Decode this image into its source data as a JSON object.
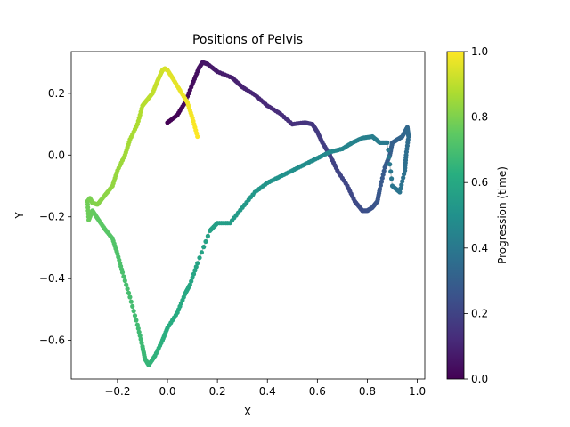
{
  "chart_data": {
    "type": "scatter",
    "title": "Positions of Pelvis",
    "xlabel": "X",
    "ylabel": "Y",
    "xlim": [
      -0.385,
      1.03
    ],
    "ylim": [
      -0.725,
      0.335
    ],
    "xticks": [
      -0.2,
      0.0,
      0.2,
      0.4,
      0.6,
      0.8,
      1.0
    ],
    "xtick_labels": [
      "−0.2",
      "0.0",
      "0.2",
      "0.4",
      "0.6",
      "0.8",
      "1.0"
    ],
    "yticks": [
      -0.6,
      -0.4,
      -0.2,
      0.0,
      0.2
    ],
    "ytick_labels": [
      "−0.6",
      "−0.4",
      "−0.2",
      "0.0",
      "0.2"
    ],
    "grid": false,
    "colormap": "viridis",
    "colorbar": {
      "label": "Progression (time)",
      "range": [
        0.0,
        1.0
      ],
      "ticks": [
        0.0,
        0.2,
        0.4,
        0.6,
        0.8,
        1.0
      ],
      "tick_labels": [
        "0.0",
        "0.2",
        "0.4",
        "0.6",
        "0.8",
        "1.0"
      ]
    },
    "path": {
      "x": [
        0.0,
        0.04,
        0.07,
        0.1,
        0.125,
        0.14,
        0.16,
        0.2,
        0.26,
        0.3,
        0.35,
        0.4,
        0.45,
        0.5,
        0.55,
        0.58,
        0.6,
        0.62,
        0.65,
        0.68,
        0.72,
        0.75,
        0.78,
        0.8,
        0.82,
        0.84,
        0.85,
        0.87,
        0.89,
        0.9,
        0.92,
        0.94,
        0.96,
        0.965,
        0.955,
        0.95,
        0.93,
        0.9,
        0.88,
        0.85,
        0.82,
        0.78,
        0.74,
        0.7,
        0.65,
        0.6,
        0.55,
        0.5,
        0.45,
        0.4,
        0.35,
        0.3,
        0.25,
        0.2,
        0.17,
        0.12,
        0.09,
        0.07,
        0.04,
        0.0,
        -0.02,
        -0.05,
        -0.075,
        -0.09,
        -0.1,
        -0.12,
        -0.15,
        -0.18,
        -0.2,
        -0.22,
        -0.25,
        -0.28,
        -0.3,
        -0.315,
        -0.32,
        -0.31,
        -0.3,
        -0.28,
        -0.25,
        -0.22,
        -0.2,
        -0.17,
        -0.15,
        -0.12,
        -0.1,
        -0.08,
        -0.06,
        -0.04,
        -0.02,
        -0.01,
        0.0,
        0.02,
        0.05,
        0.08,
        0.1,
        0.12
      ],
      "y": [
        0.105,
        0.13,
        0.17,
        0.23,
        0.28,
        0.3,
        0.295,
        0.27,
        0.25,
        0.22,
        0.195,
        0.16,
        0.135,
        0.1,
        0.105,
        0.1,
        0.075,
        0.04,
        0.0,
        -0.05,
        -0.1,
        -0.15,
        -0.18,
        -0.18,
        -0.17,
        -0.15,
        -0.11,
        -0.04,
        0.0,
        0.04,
        0.05,
        0.06,
        0.09,
        0.06,
        0.0,
        -0.05,
        -0.12,
        -0.1,
        0.04,
        0.04,
        0.06,
        0.055,
        0.04,
        0.02,
        0.01,
        -0.01,
        -0.03,
        -0.05,
        -0.07,
        -0.09,
        -0.12,
        -0.17,
        -0.22,
        -0.22,
        -0.245,
        -0.35,
        -0.42,
        -0.45,
        -0.51,
        -0.56,
        -0.6,
        -0.65,
        -0.68,
        -0.66,
        -0.62,
        -0.55,
        -0.46,
        -0.38,
        -0.32,
        -0.27,
        -0.24,
        -0.205,
        -0.18,
        -0.21,
        -0.15,
        -0.14,
        -0.155,
        -0.16,
        -0.13,
        -0.1,
        -0.05,
        0.0,
        0.05,
        0.1,
        0.16,
        0.18,
        0.2,
        0.24,
        0.275,
        0.28,
        0.275,
        0.25,
        0.21,
        0.17,
        0.12,
        0.06
      ]
    }
  }
}
